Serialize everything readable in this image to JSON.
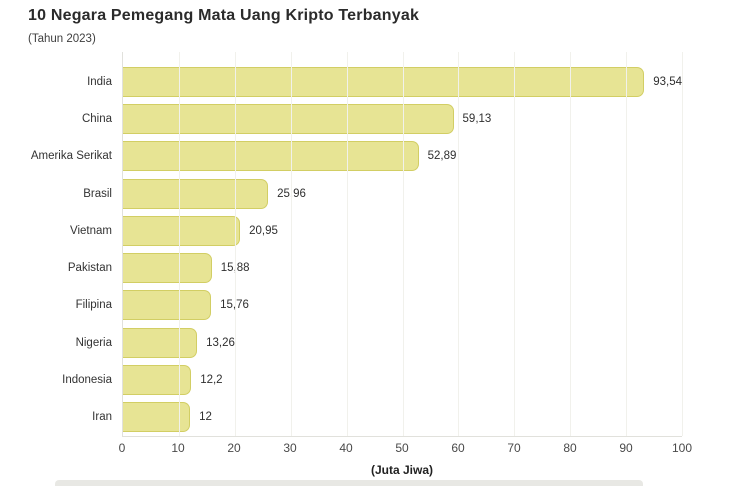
{
  "chart": {
    "title": "10 Negara Pemegang Mata Uang Kripto Terbanyak",
    "subtitle": "(Tahun 2023)",
    "x_axis_label": "(Juta Jiwa)"
  },
  "chart_data": {
    "type": "bar",
    "orientation": "horizontal",
    "title": "10 Negara Pemegang Mata Uang Kripto Terbanyak",
    "subtitle": "(Tahun 2023)",
    "xlabel": "(Juta Jiwa)",
    "ylabel": "",
    "categories": [
      "India",
      "China",
      "Amerika Serikat",
      "Brasil",
      "Vietnam",
      "Pakistan",
      "Filipina",
      "Nigeria",
      "Indonesia",
      "Iran"
    ],
    "values": [
      93.54,
      59.13,
      52.89,
      25.96,
      20.95,
      15.88,
      15.76,
      13.26,
      12.2,
      12
    ],
    "value_labels": [
      "93,54",
      "59,13",
      "52,89",
      "25,96",
      "20,95",
      "15,88",
      "15,76",
      "13,26",
      "12,2",
      "12"
    ],
    "xlim": [
      0,
      100
    ],
    "xticks": [
      0,
      10,
      20,
      30,
      40,
      50,
      60,
      70,
      80,
      90,
      100
    ],
    "grid": "vertical-gridlines",
    "legend": "none"
  },
  "colors": {
    "background": "#ffffff",
    "bar_fill": "#e7e494",
    "bar_border": "#d2ce64",
    "gridline": "#f1f1ec",
    "axis_line": "#e1e1dc",
    "title_text": "#2b2b2b",
    "label_text": "#333333",
    "tick_text": "#4a4a4a",
    "bottom_strip": "#e8e8e4"
  }
}
